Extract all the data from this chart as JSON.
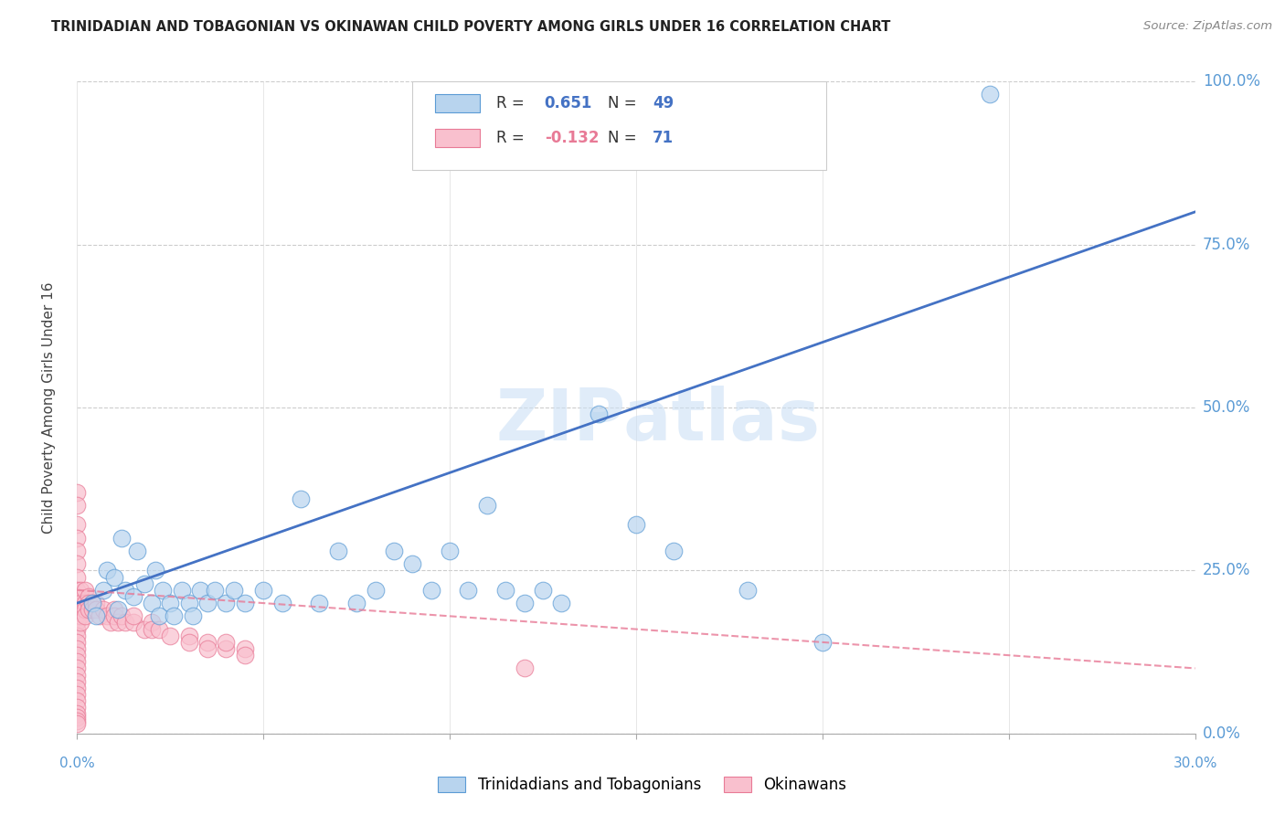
{
  "title": "TRINIDADIAN AND TOBAGONIAN VS OKINAWAN CHILD POVERTY AMONG GIRLS UNDER 16 CORRELATION CHART",
  "source": "Source: ZipAtlas.com",
  "ylabel": "Child Poverty Among Girls Under 16",
  "xlim": [
    0.0,
    30.0
  ],
  "ylim": [
    0.0,
    100.0
  ],
  "ytick_values": [
    0,
    25,
    50,
    75,
    100
  ],
  "xtick_values": [
    0,
    5,
    10,
    15,
    20,
    25,
    30
  ],
  "blue_R": "0.651",
  "blue_N": "49",
  "pink_R": "-0.132",
  "pink_N": "71",
  "blue_fill": "#b8d4ee",
  "pink_fill": "#f9c0ce",
  "blue_edge": "#5b9bd5",
  "pink_edge": "#e87a96",
  "blue_line": "#4472c4",
  "pink_line": "#e87a96",
  "tick_color": "#5b9bd5",
  "legend_label_blue": "Trinidadians and Tobagonians",
  "legend_label_pink": "Okinawans",
  "watermark": "ZIPatlas",
  "blue_scatter_x": [
    0.4,
    0.5,
    0.7,
    0.8,
    1.0,
    1.1,
    1.2,
    1.3,
    1.5,
    1.6,
    1.8,
    2.0,
    2.1,
    2.2,
    2.3,
    2.5,
    2.6,
    2.8,
    3.0,
    3.1,
    3.3,
    3.5,
    3.7,
    4.0,
    4.2,
    4.5,
    5.0,
    5.5,
    6.0,
    6.5,
    7.0,
    7.5,
    8.0,
    8.5,
    9.0,
    9.5,
    10.0,
    10.5,
    11.0,
    11.5,
    12.0,
    12.5,
    13.0,
    14.0,
    15.0,
    16.0,
    18.0,
    20.0,
    24.5
  ],
  "blue_scatter_y": [
    20.0,
    18.0,
    22.0,
    25.0,
    24.0,
    19.0,
    30.0,
    22.0,
    21.0,
    28.0,
    23.0,
    20.0,
    25.0,
    18.0,
    22.0,
    20.0,
    18.0,
    22.0,
    20.0,
    18.0,
    22.0,
    20.0,
    22.0,
    20.0,
    22.0,
    20.0,
    22.0,
    20.0,
    36.0,
    20.0,
    28.0,
    20.0,
    22.0,
    28.0,
    26.0,
    22.0,
    28.0,
    22.0,
    35.0,
    22.0,
    20.0,
    22.0,
    20.0,
    49.0,
    32.0,
    28.0,
    22.0,
    14.0,
    98.0
  ],
  "pink_scatter_x": [
    0.0,
    0.0,
    0.0,
    0.0,
    0.0,
    0.0,
    0.0,
    0.0,
    0.0,
    0.0,
    0.0,
    0.0,
    0.0,
    0.0,
    0.0,
    0.0,
    0.0,
    0.0,
    0.0,
    0.0,
    0.0,
    0.0,
    0.0,
    0.0,
    0.0,
    0.0,
    0.0,
    0.0,
    0.0,
    0.0,
    0.1,
    0.1,
    0.1,
    0.1,
    0.1,
    0.2,
    0.2,
    0.2,
    0.2,
    0.3,
    0.3,
    0.3,
    0.4,
    0.4,
    0.5,
    0.5,
    0.6,
    0.7,
    0.8,
    0.9,
    1.0,
    1.0,
    1.1,
    1.2,
    1.3,
    1.5,
    1.5,
    1.8,
    2.0,
    2.0,
    2.2,
    2.5,
    3.0,
    3.0,
    3.5,
    3.5,
    4.0,
    4.0,
    4.5,
    4.5,
    12.0
  ],
  "pink_scatter_y": [
    37.0,
    35.0,
    32.0,
    30.0,
    28.0,
    26.0,
    24.0,
    22.0,
    21.0,
    20.0,
    19.0,
    18.0,
    17.0,
    16.0,
    15.0,
    14.0,
    13.0,
    12.0,
    11.0,
    10.0,
    9.0,
    8.0,
    7.0,
    6.0,
    5.0,
    4.0,
    3.0,
    2.5,
    2.0,
    1.5,
    22.0,
    20.0,
    19.0,
    18.0,
    17.0,
    22.0,
    20.0,
    19.0,
    18.0,
    21.0,
    20.0,
    19.0,
    20.0,
    19.0,
    20.0,
    19.0,
    18.0,
    19.0,
    18.0,
    17.0,
    19.0,
    18.0,
    17.0,
    18.0,
    17.0,
    17.0,
    18.0,
    16.0,
    17.0,
    16.0,
    16.0,
    15.0,
    15.0,
    14.0,
    14.0,
    13.0,
    13.0,
    14.0,
    13.0,
    12.0,
    10.0
  ],
  "blue_line_x0": 0.0,
  "blue_line_y0": 20.0,
  "blue_line_x1": 30.0,
  "blue_line_y1": 80.0,
  "pink_line_x0": 0.0,
  "pink_line_y0": 22.0,
  "pink_line_x1": 30.0,
  "pink_line_y1": 10.0
}
